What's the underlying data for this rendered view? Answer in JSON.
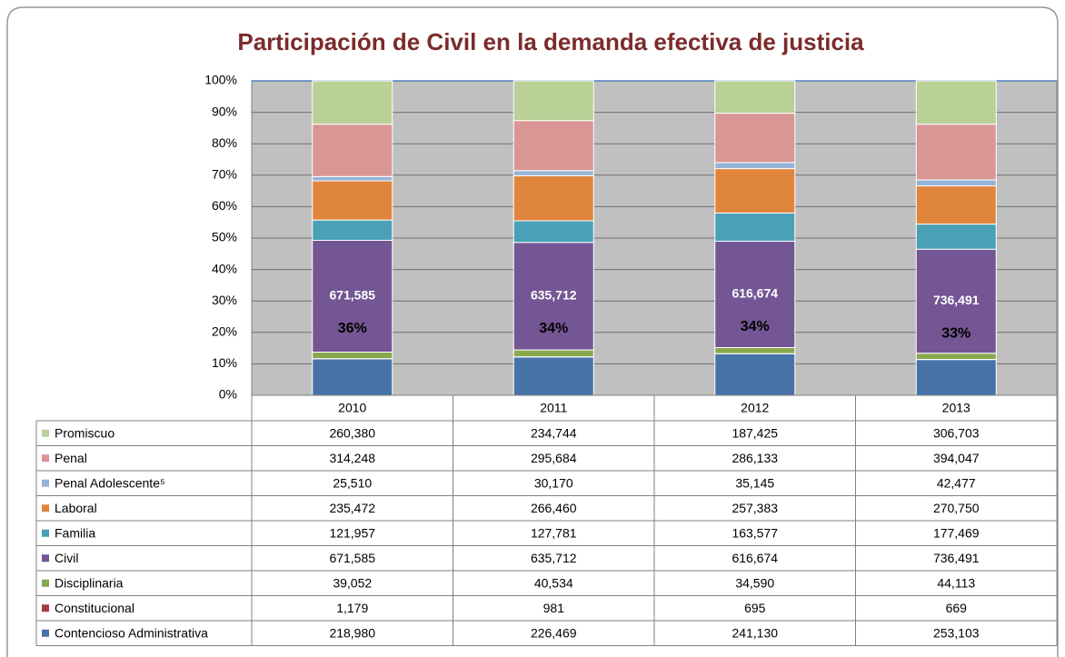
{
  "chart_data": {
    "type": "bar",
    "stacking": "percent",
    "title": "Participación de Civil en la demanda efectiva de justicia",
    "categories": [
      "2010",
      "2011",
      "2012",
      "2013"
    ],
    "ylim": [
      0,
      100
    ],
    "yticks": [
      {
        "value": 0,
        "label": "0%"
      },
      {
        "value": 10,
        "label": "10%"
      },
      {
        "value": 20,
        "label": "20%"
      },
      {
        "value": 30,
        "label": "30%"
      },
      {
        "value": 40,
        "label": "40%"
      },
      {
        "value": 50,
        "label": "50%"
      },
      {
        "value": 60,
        "label": "60%"
      },
      {
        "value": 70,
        "label": "70%"
      },
      {
        "value": 80,
        "label": "80%"
      },
      {
        "value": 90,
        "label": "90%"
      },
      {
        "value": 100,
        "label": "100%"
      }
    ],
    "grid": true,
    "series": [
      {
        "name": "Promiscuo",
        "color": "#b9d097",
        "values": [
          260380,
          234744,
          187425,
          306703
        ],
        "value_labels": [
          "260,380",
          "234,744",
          "187,425",
          "306,703"
        ]
      },
      {
        "name": "Penal",
        "color": "#d99694",
        "values": [
          314248,
          295684,
          286133,
          394047
        ],
        "value_labels": [
          "314,248",
          "295,684",
          "286,133",
          "394,047"
        ]
      },
      {
        "name": "Penal Adolescente⁵",
        "color": "#95b3d7",
        "values": [
          25510,
          30170,
          35145,
          42477
        ],
        "value_labels": [
          "25,510",
          "30,170",
          "35,145",
          "42,477"
        ]
      },
      {
        "name": "Laboral",
        "color": "#e0863c",
        "values": [
          235472,
          266460,
          257383,
          270750
        ],
        "value_labels": [
          "235,472",
          "266,460",
          "257,383",
          "270,750"
        ]
      },
      {
        "name": "Familia",
        "color": "#4aa0b6",
        "values": [
          121957,
          127781,
          163577,
          177469
        ],
        "value_labels": [
          "121,957",
          "127,781",
          "163,577",
          "177,469"
        ]
      },
      {
        "name": "Civil",
        "color": "#735693",
        "values": [
          671585,
          635712,
          616674,
          736491
        ],
        "value_labels": [
          "671,585",
          "635,712",
          "616,674",
          "736,491"
        ],
        "share_labels": [
          "36%",
          "34%",
          "34%",
          "33%"
        ]
      },
      {
        "name": "Disciplinaria",
        "color": "#88a84d",
        "values": [
          39052,
          40534,
          34590,
          44113
        ],
        "value_labels": [
          "39,052",
          "40,534",
          "34,590",
          "44,113"
        ]
      },
      {
        "name": "Constitucional",
        "color": "#a6403c",
        "values": [
          1179,
          981,
          695,
          669
        ],
        "value_labels": [
          "1,179",
          "981",
          "695",
          "669"
        ]
      },
      {
        "name": "Contencioso Administrativa",
        "color": "#4672a8",
        "values": [
          218980,
          226469,
          241130,
          253103
        ],
        "value_labels": [
          "218,980",
          "226,469",
          "241,130",
          "253,103"
        ]
      }
    ]
  }
}
